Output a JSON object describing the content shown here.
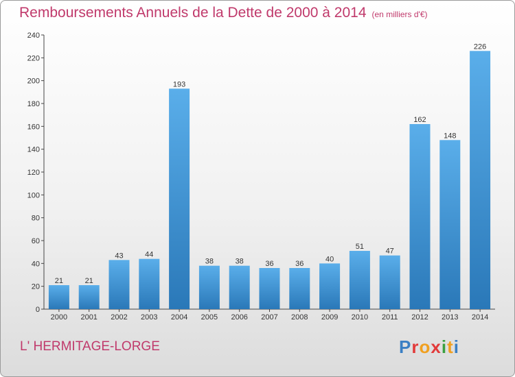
{
  "title": "Remboursements Annuels de la Dette de 2000 à 2014",
  "unit": "(en milliers d'€)",
  "commune": "L' HERMITAGE-LORGE",
  "logo": {
    "text": "Proxiti",
    "colors": [
      "#3a7fc4",
      "#e23a3a",
      "#f0a020",
      "#e23a3a",
      "#3aa040",
      "#f0a020",
      "#3a7fc4"
    ]
  },
  "colors": {
    "bar_light": "#5aaeea",
    "bar_dark": "#2a78b8",
    "title": "#c0396b"
  },
  "chart_data": {
    "type": "bar",
    "title": "Remboursements Annuels de la Dette de 2000 à 2014",
    "categories": [
      "2000",
      "2001",
      "2002",
      "2003",
      "2004",
      "2005",
      "2006",
      "2007",
      "2008",
      "2009",
      "2010",
      "2011",
      "2012",
      "2013",
      "2014"
    ],
    "values": [
      21,
      21,
      43,
      44,
      193,
      38,
      38,
      36,
      36,
      40,
      51,
      47,
      162,
      148,
      226
    ],
    "ylim": [
      0,
      240
    ],
    "yticks": [
      0,
      20,
      40,
      60,
      80,
      100,
      120,
      140,
      160,
      180,
      200,
      220,
      240
    ],
    "grid": false,
    "legend": "none"
  }
}
